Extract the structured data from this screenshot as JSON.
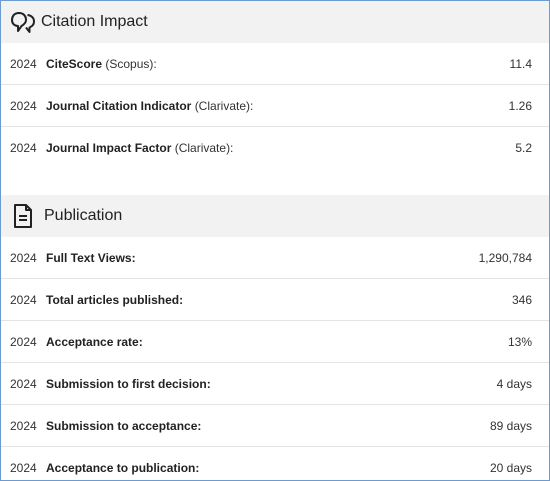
{
  "citation": {
    "title": "Citation Impact",
    "icon": "quote-icon",
    "rows": [
      {
        "year": "2024",
        "label": "CiteScore",
        "source": "(Scopus):",
        "value": "11.4"
      },
      {
        "year": "2024",
        "label": "Journal Citation Indicator",
        "source": "(Clarivate):",
        "value": "1.26"
      },
      {
        "year": "2024",
        "label": "Journal Impact Factor",
        "source": "(Clarivate):",
        "value": "5.2"
      }
    ]
  },
  "publication": {
    "title": "Publication",
    "icon": "document-icon",
    "rows": [
      {
        "year": "2024",
        "label": "Full Text Views:",
        "value": "1,290,784"
      },
      {
        "year": "2024",
        "label": "Total articles published:",
        "value": "346"
      },
      {
        "year": "2024",
        "label": "Acceptance rate:",
        "value": "13%"
      },
      {
        "year": "2024",
        "label": "Submission to first decision:",
        "value": "4 days"
      },
      {
        "year": "2024",
        "label": "Submission to acceptance:",
        "value": "89 days"
      },
      {
        "year": "2024",
        "label": "Acceptance to publication:",
        "value": "20 days"
      }
    ]
  },
  "colors": {
    "header_bg": "#f2f2f2",
    "border": "#6b9bd1",
    "row_divider": "#e4e4e4"
  }
}
